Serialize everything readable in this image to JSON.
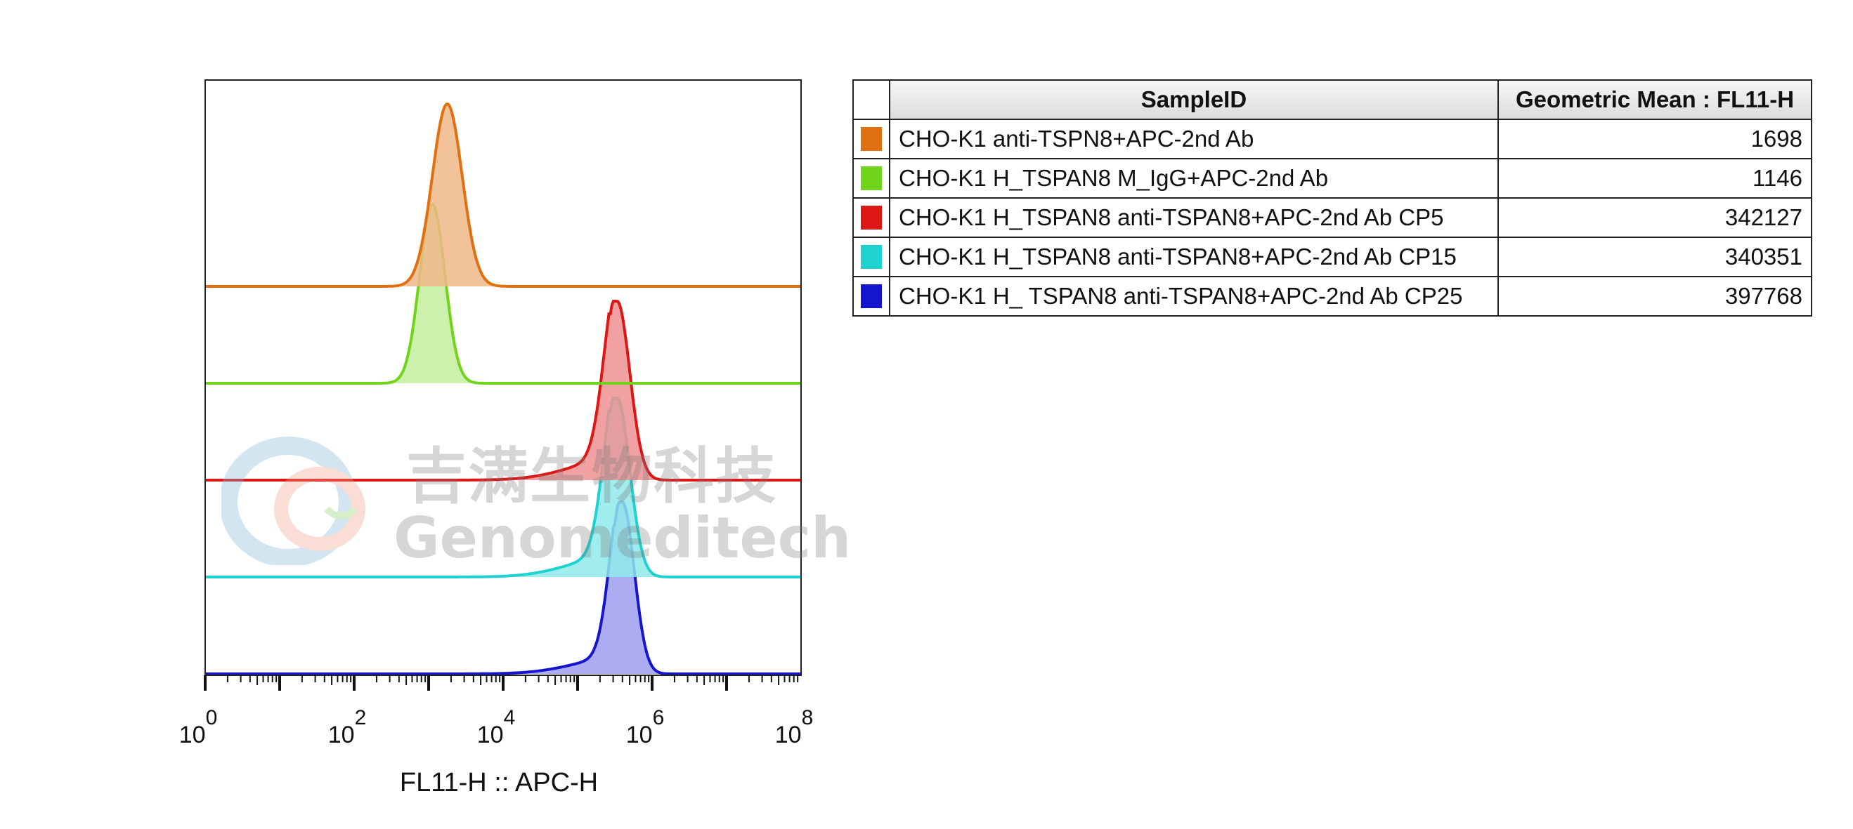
{
  "chart_data": {
    "type": "histogram-overlay",
    "xlabel": "FL11-H :: APC-H",
    "x_scale": "log10",
    "xlim": [
      0,
      8
    ],
    "x_ticks": [
      {
        "base": "10",
        "exp": "0",
        "value": 1
      },
      {
        "base": "10",
        "exp": "2",
        "value": 100
      },
      {
        "base": "10",
        "exp": "4",
        "value": 10000
      },
      {
        "base": "10",
        "exp": "6",
        "value": 1000000
      },
      {
        "base": "10",
        "exp": "8",
        "value": 100000000
      }
    ],
    "grid": false,
    "legend_placement": "right-table",
    "table_headers": [
      "SampleID",
      "Geometric Mean : FL11-H"
    ],
    "series": [
      {
        "name": "CHO-K1 anti-TSPN8+APC-2nd Ab",
        "color": "#e07012",
        "fill": "#f0b88a",
        "geometric_mean": "1698",
        "peak_log10": 3.25,
        "width": 0.2,
        "left_tail": 0.0
      },
      {
        "name": "CHO-K1 H_TSPAN8 M_IgG+APC-2nd Ab",
        "color": "#6fd41a",
        "fill": "#c4ee9e",
        "geometric_mean": "1146",
        "peak_log10": 3.05,
        "width": 0.17,
        "left_tail": 0.0
      },
      {
        "name": "CHO-K1 H_TSPAN8 anti-TSPAN8+APC-2nd Ab CP5",
        "color": "#dd1616",
        "fill": "#ee9090",
        "geometric_mean": "342127",
        "peak_log10": 5.53,
        "width": 0.17,
        "left_tail": 0.12
      },
      {
        "name": "CHO-K1 H_TSPAN8 anti-TSPAN8+APC-2nd Ab CP15",
        "color": "#1ed2d2",
        "fill": "#90eaea",
        "geometric_mean": "340351",
        "peak_log10": 5.53,
        "width": 0.17,
        "left_tail": 0.12
      },
      {
        "name": "CHO-K1 H_ TSPAN8 anti-TSPAN8+APC-2nd Ab CP25",
        "color": "#1515d0",
        "fill": "#9e9ef0",
        "geometric_mean": "397768",
        "peak_log10": 5.6,
        "width": 0.16,
        "left_tail": 0.1
      }
    ]
  },
  "watermark": {
    "cn_text": "吉满生物科技",
    "en_text": "Genomeditech"
  }
}
